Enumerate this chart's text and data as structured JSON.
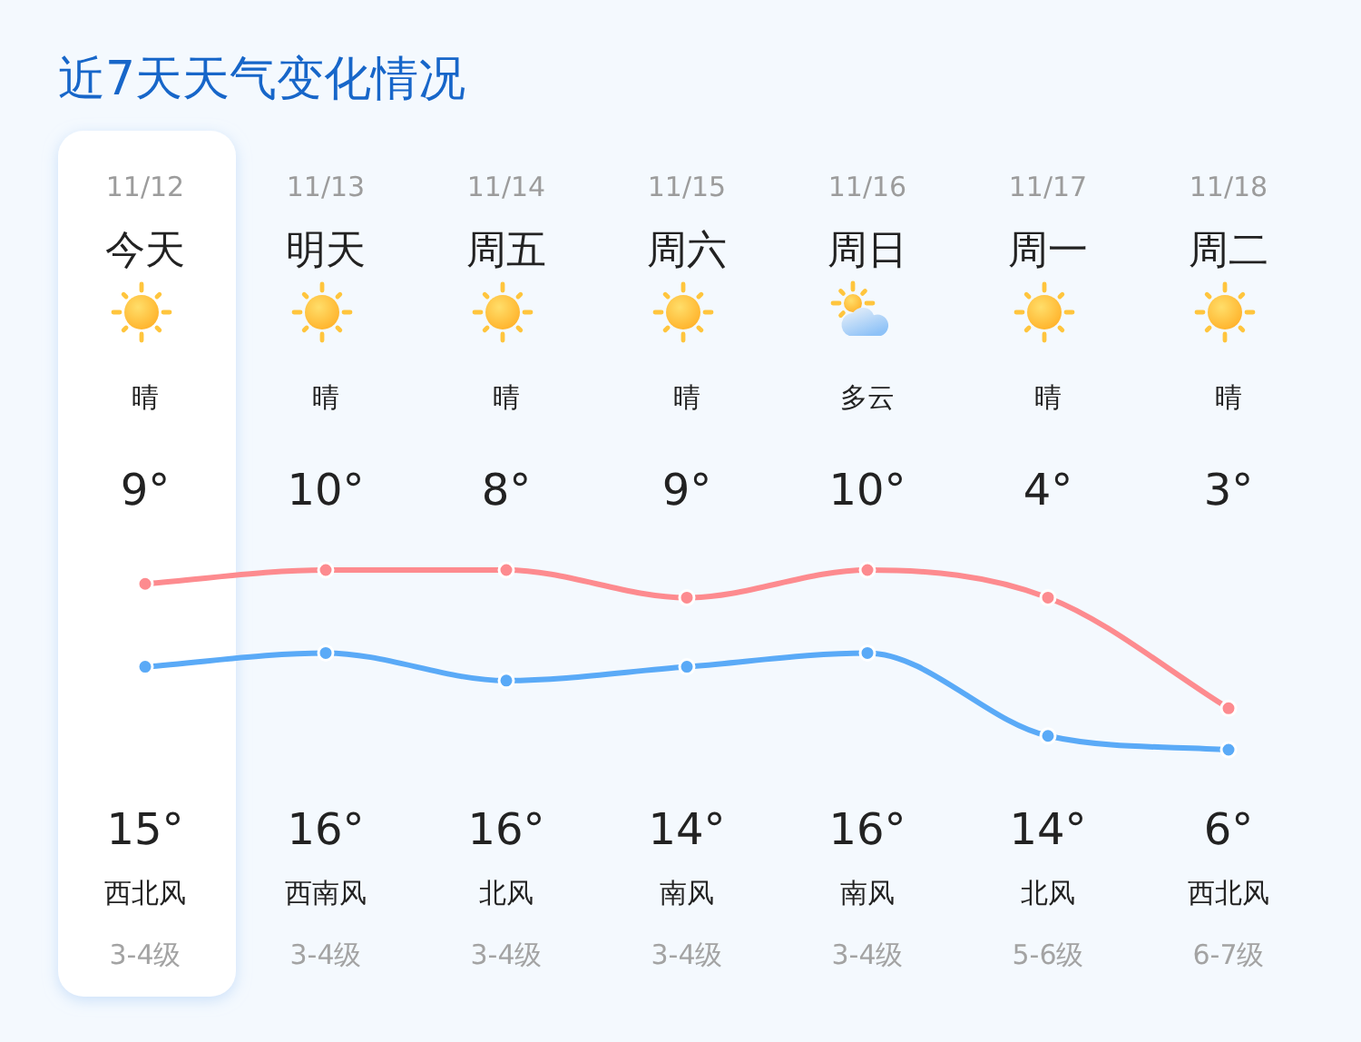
{
  "chart_data": {
    "type": "line",
    "title": "近7天天气变化情况",
    "categories": [
      "11/12",
      "11/13",
      "11/14",
      "11/15",
      "11/16",
      "11/17",
      "11/18"
    ],
    "series": [
      {
        "color": "#fd8b8f",
        "values": [
          15,
          16,
          16,
          14,
          16,
          14,
          6
        ],
        "value_labels": [
          "15°",
          "16°",
          "16°",
          "14°",
          "16°",
          "14°",
          "6°"
        ]
      },
      {
        "color": "#5aaaf7",
        "values": [
          9,
          10,
          8,
          9,
          10,
          4,
          3
        ],
        "value_labels": [
          "9°",
          "10°",
          "8°",
          "9°",
          "10°",
          "4°",
          "3°"
        ]
      }
    ],
    "marker": "circle",
    "line_style": "solid",
    "tick_labels": "x",
    "bands": [
      {
        "axis": "x",
        "from": "11/12",
        "to": "11/12",
        "color": "#ffffff"
      }
    ],
    "annotations": [
      "今天",
      "明天",
      "周五",
      "周六",
      "周日",
      "周一",
      "周二",
      "晴",
      "晴",
      "晴",
      "晴",
      "多云",
      "晴",
      "晴",
      "西北风",
      "西南风",
      "北风",
      "南风",
      "南风",
      "北风",
      "西北风",
      "3-4级",
      "3-4级",
      "3-4级",
      "3-4级",
      "3-4级",
      "5-6级",
      "6-7级"
    ]
  }
}
